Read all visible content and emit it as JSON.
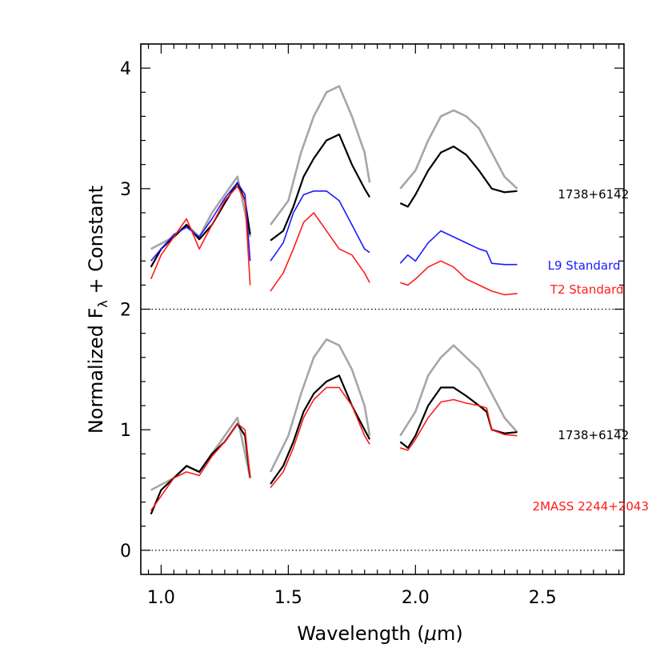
{
  "chart_data": {
    "type": "line",
    "xlabel_main": "Wavelength (",
    "xlabel_mu": "μ",
    "xlabel_unit": "m)",
    "ylabel_main": "Normalized F",
    "ylabel_sub": "λ",
    "ylabel_rest": " + Constant",
    "xlim": [
      0.92,
      2.82
    ],
    "ylim": [
      -0.2,
      4.2
    ],
    "xticks": [
      1.0,
      1.5,
      2.0,
      2.5
    ],
    "xtick_labels": [
      "1.0",
      "1.5",
      "2.0",
      "2.5"
    ],
    "yticks": [
      0,
      1,
      2,
      3,
      4
    ],
    "ytick_labels": [
      "0",
      "1",
      "2",
      "3",
      "4"
    ],
    "reference_lines": [
      0,
      2
    ],
    "colors": {
      "black": "#000000",
      "gray": "#a6a6a6",
      "blue": "#1a1aff",
      "red": "#ff1a1a"
    },
    "annotations": [
      {
        "key": "top_obj",
        "text": "1738+6142",
        "color": "#000000"
      },
      {
        "key": "l9",
        "text": "L9 Standard",
        "color": "#1a1aff"
      },
      {
        "key": "t2",
        "text": "T2 Standard",
        "color": "#ff1a1a"
      },
      {
        "key": "bottom_obj",
        "text": "1738+6142",
        "color": "#000000"
      },
      {
        "key": "bottom_ref",
        "text": "2MASS 2244+2043",
        "color": "#ff1a1a"
      }
    ],
    "series": [
      {
        "key": "top_uncertainty",
        "color": "#a6a6a6",
        "segments": [
          {
            "x": [
              0.96,
              1.05,
              1.1,
              1.15,
              1.2,
              1.25,
              1.3,
              1.35
            ],
            "y": [
              2.5,
              2.6,
              2.7,
              2.6,
              2.8,
              2.95,
              3.1,
              2.6
            ]
          },
          {
            "x": [
              1.43,
              1.5,
              1.55,
              1.6,
              1.65,
              1.7,
              1.75,
              1.8,
              1.82
            ],
            "y": [
              2.7,
              2.9,
              3.3,
              3.6,
              3.8,
              3.85,
              3.6,
              3.3,
              3.05
            ]
          },
          {
            "x": [
              1.94,
              2.0,
              2.05,
              2.1,
              2.15,
              2.2,
              2.25,
              2.3,
              2.35,
              2.4
            ],
            "y": [
              3.0,
              3.15,
              3.4,
              3.6,
              3.65,
              3.6,
              3.5,
              3.3,
              3.1,
              3.0
            ]
          }
        ]
      },
      {
        "key": "top_object",
        "color": "#000000",
        "segments": [
          {
            "x": [
              0.96,
              1.0,
              1.05,
              1.1,
              1.15,
              1.2,
              1.25,
              1.3,
              1.33,
              1.35
            ],
            "y": [
              2.35,
              2.5,
              2.6,
              2.7,
              2.58,
              2.7,
              2.88,
              3.05,
              2.9,
              2.62
            ]
          },
          {
            "x": [
              1.43,
              1.48,
              1.52,
              1.56,
              1.6,
              1.65,
              1.7,
              1.75,
              1.8,
              1.82
            ],
            "y": [
              2.57,
              2.65,
              2.85,
              3.1,
              3.25,
              3.4,
              3.45,
              3.2,
              3.0,
              2.93
            ]
          },
          {
            "x": [
              1.94,
              1.97,
              2.0,
              2.05,
              2.1,
              2.15,
              2.2,
              2.25,
              2.3,
              2.35,
              2.4
            ],
            "y": [
              2.88,
              2.85,
              2.95,
              3.15,
              3.3,
              3.35,
              3.28,
              3.15,
              3.0,
              2.97,
              2.98
            ]
          }
        ]
      },
      {
        "key": "l9_standard",
        "color": "#1a1aff",
        "segments": [
          {
            "x": [
              0.96,
              1.0,
              1.05,
              1.1,
              1.15,
              1.2,
              1.25,
              1.3,
              1.33,
              1.35
            ],
            "y": [
              2.4,
              2.5,
              2.62,
              2.68,
              2.6,
              2.75,
              2.92,
              3.05,
              2.95,
              2.4
            ]
          },
          {
            "x": [
              1.43,
              1.48,
              1.52,
              1.56,
              1.6,
              1.65,
              1.7,
              1.75,
              1.8,
              1.82
            ],
            "y": [
              2.4,
              2.55,
              2.8,
              2.95,
              2.98,
              2.98,
              2.9,
              2.7,
              2.5,
              2.47
            ]
          },
          {
            "x": [
              1.94,
              1.97,
              2.0,
              2.05,
              2.1,
              2.15,
              2.2,
              2.25,
              2.28,
              2.3,
              2.35,
              2.4
            ],
            "y": [
              2.38,
              2.45,
              2.4,
              2.55,
              2.65,
              2.6,
              2.55,
              2.5,
              2.48,
              2.38,
              2.37,
              2.37
            ]
          }
        ]
      },
      {
        "key": "t2_standard",
        "color": "#ff1a1a",
        "segments": [
          {
            "x": [
              0.96,
              1.0,
              1.05,
              1.1,
              1.15,
              1.2,
              1.25,
              1.3,
              1.33,
              1.35
            ],
            "y": [
              2.25,
              2.45,
              2.6,
              2.75,
              2.5,
              2.7,
              2.9,
              3.02,
              2.9,
              2.2
            ]
          },
          {
            "x": [
              1.43,
              1.48,
              1.52,
              1.56,
              1.6,
              1.65,
              1.7,
              1.75,
              1.8,
              1.82
            ],
            "y": [
              2.15,
              2.3,
              2.5,
              2.72,
              2.8,
              2.65,
              2.5,
              2.45,
              2.3,
              2.22
            ]
          },
          {
            "x": [
              1.94,
              1.97,
              2.0,
              2.05,
              2.1,
              2.15,
              2.2,
              2.25,
              2.3,
              2.35,
              2.4
            ],
            "y": [
              2.22,
              2.2,
              2.25,
              2.35,
              2.4,
              2.35,
              2.25,
              2.2,
              2.15,
              2.12,
              2.13
            ]
          }
        ]
      },
      {
        "key": "bottom_uncertainty",
        "color": "#a6a6a6",
        "segments": [
          {
            "x": [
              0.96,
              1.05,
              1.1,
              1.15,
              1.2,
              1.25,
              1.3,
              1.35
            ],
            "y": [
              0.5,
              0.6,
              0.7,
              0.65,
              0.8,
              0.95,
              1.1,
              0.6
            ]
          },
          {
            "x": [
              1.43,
              1.5,
              1.55,
              1.6,
              1.65,
              1.7,
              1.75,
              1.8,
              1.82
            ],
            "y": [
              0.65,
              0.95,
              1.3,
              1.6,
              1.75,
              1.7,
              1.5,
              1.2,
              0.95
            ]
          },
          {
            "x": [
              1.94,
              2.0,
              2.05,
              2.1,
              2.15,
              2.2,
              2.25,
              2.3,
              2.35,
              2.4
            ],
            "y": [
              0.95,
              1.15,
              1.45,
              1.6,
              1.7,
              1.6,
              1.5,
              1.3,
              1.1,
              0.98
            ]
          }
        ]
      },
      {
        "key": "bottom_object",
        "color": "#000000",
        "segments": [
          {
            "x": [
              0.96,
              1.0,
              1.05,
              1.1,
              1.15,
              1.2,
              1.25,
              1.3,
              1.33,
              1.35
            ],
            "y": [
              0.3,
              0.5,
              0.6,
              0.7,
              0.65,
              0.8,
              0.9,
              1.05,
              0.95,
              0.6
            ]
          },
          {
            "x": [
              1.43,
              1.48,
              1.52,
              1.56,
              1.6,
              1.65,
              1.7,
              1.75,
              1.8,
              1.82
            ],
            "y": [
              0.55,
              0.7,
              0.9,
              1.15,
              1.3,
              1.4,
              1.45,
              1.2,
              1.0,
              0.92
            ]
          },
          {
            "x": [
              1.94,
              1.97,
              2.0,
              2.05,
              2.1,
              2.15,
              2.2,
              2.25,
              2.28,
              2.3,
              2.35,
              2.4
            ],
            "y": [
              0.9,
              0.85,
              0.95,
              1.2,
              1.35,
              1.35,
              1.28,
              1.2,
              1.15,
              1.0,
              0.97,
              0.98
            ]
          }
        ]
      },
      {
        "key": "bottom_reference",
        "color": "#ff1a1a",
        "segments": [
          {
            "x": [
              0.96,
              1.0,
              1.05,
              1.1,
              1.15,
              1.2,
              1.25,
              1.3,
              1.33,
              1.35
            ],
            "y": [
              0.33,
              0.45,
              0.6,
              0.65,
              0.62,
              0.78,
              0.9,
              1.05,
              1.0,
              0.6
            ]
          },
          {
            "x": [
              1.43,
              1.48,
              1.52,
              1.56,
              1.6,
              1.65,
              1.7,
              1.75,
              1.8,
              1.82
            ],
            "y": [
              0.52,
              0.65,
              0.85,
              1.1,
              1.25,
              1.35,
              1.35,
              1.2,
              0.95,
              0.88
            ]
          },
          {
            "x": [
              1.94,
              1.97,
              2.0,
              2.05,
              2.1,
              2.15,
              2.2,
              2.25,
              2.28,
              2.3,
              2.35,
              2.4
            ],
            "y": [
              0.85,
              0.83,
              0.92,
              1.1,
              1.23,
              1.25,
              1.22,
              1.2,
              1.18,
              1.0,
              0.96,
              0.95
            ]
          }
        ]
      }
    ]
  }
}
